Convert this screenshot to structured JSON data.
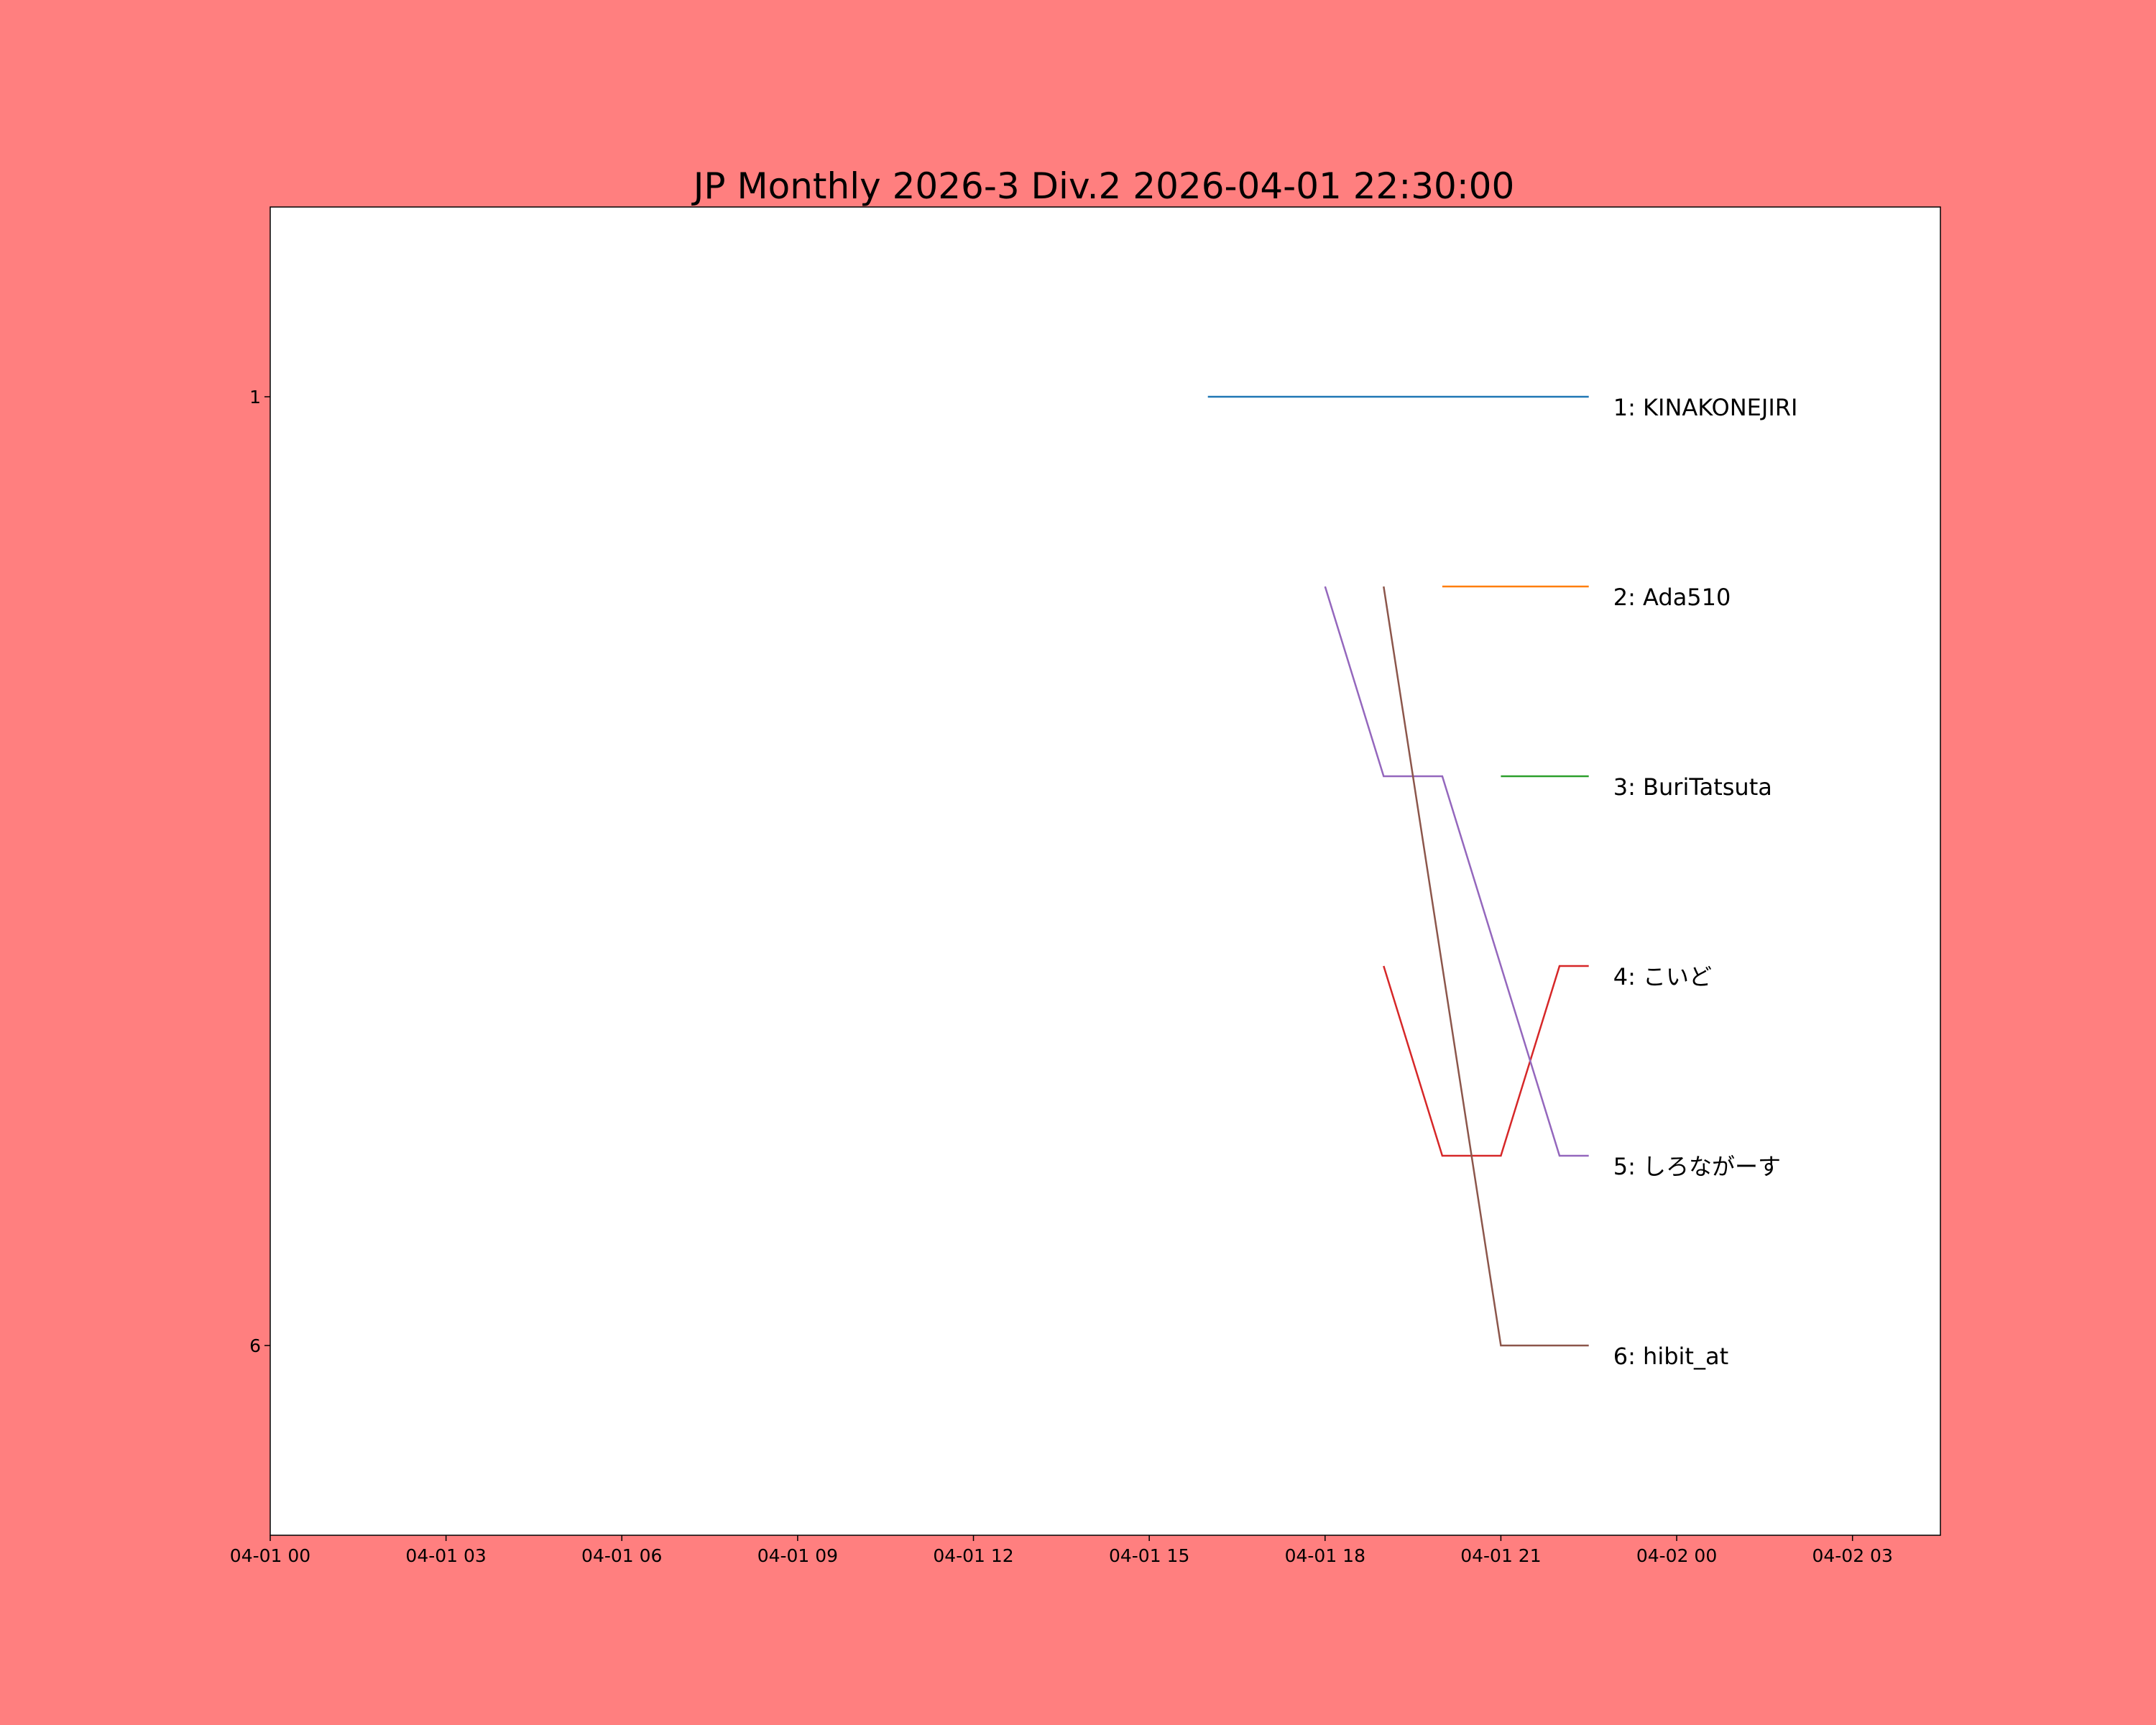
{
  "chart_data": {
    "type": "line",
    "title": "JP Monthly 2026-3 Div.2 2026-04-01 22:30:00",
    "xlabel": "",
    "ylabel": "",
    "xlim": [
      "2026-04-01 00:00",
      "2026-04-02 04:30"
    ],
    "ylim": [
      7,
      0
    ],
    "y_inverted": true,
    "grid": false,
    "background": "#ff7f7f",
    "plot_background": "#ffffff",
    "x_tick_labels": [
      {
        "x": "2026-04-01 00:00",
        "label": "04-01 00"
      },
      {
        "x": "2026-04-01 03:00",
        "label": "04-01 03"
      },
      {
        "x": "2026-04-01 06:00",
        "label": "04-01 06"
      },
      {
        "x": "2026-04-01 09:00",
        "label": "04-01 09"
      },
      {
        "x": "2026-04-01 12:00",
        "label": "04-01 12"
      },
      {
        "x": "2026-04-01 15:00",
        "label": "04-01 15"
      },
      {
        "x": "2026-04-01 18:00",
        "label": "04-01 18"
      },
      {
        "x": "2026-04-01 21:00",
        "label": "04-01 21"
      },
      {
        "x": "2026-04-02 00:00",
        "label": "04-02 00"
      },
      {
        "x": "2026-04-02 03:00",
        "label": "04-02 03"
      }
    ],
    "y_tick_labels": [
      {
        "y": 1,
        "label": "1"
      },
      {
        "y": 6,
        "label": "6"
      }
    ],
    "series": [
      {
        "label": "1: KINAKONEJIRI",
        "color": "#1f77b4",
        "points": [
          [
            "2026-04-01 16:00",
            1
          ],
          [
            "2026-04-01 22:30",
            1
          ]
        ]
      },
      {
        "label": "2: Ada510",
        "color": "#ff7f0e",
        "points": [
          [
            "2026-04-01 20:00",
            2
          ],
          [
            "2026-04-01 22:30",
            2
          ]
        ]
      },
      {
        "label": "3: BuriTatsuta",
        "color": "#2ca02c",
        "points": [
          [
            "2026-04-01 21:00",
            3
          ],
          [
            "2026-04-01 22:30",
            3
          ]
        ]
      },
      {
        "label": "4: こいど",
        "color": "#d62728",
        "points": [
          [
            "2026-04-01 19:00",
            4
          ],
          [
            "2026-04-01 20:00",
            5
          ],
          [
            "2026-04-01 21:00",
            5
          ],
          [
            "2026-04-01 22:00",
            4
          ],
          [
            "2026-04-01 22:30",
            4
          ]
        ]
      },
      {
        "label": "5: しろながーす",
        "color": "#9467bd",
        "points": [
          [
            "2026-04-01 18:00",
            2
          ],
          [
            "2026-04-01 19:00",
            3
          ],
          [
            "2026-04-01 20:00",
            3
          ],
          [
            "2026-04-01 22:00",
            5
          ],
          [
            "2026-04-01 22:30",
            5
          ]
        ]
      },
      {
        "label": "6: hibit_at",
        "color": "#8c564b",
        "points": [
          [
            "2026-04-01 19:00",
            2
          ],
          [
            "2026-04-01 21:00",
            6
          ],
          [
            "2026-04-01 22:30",
            6
          ]
        ]
      }
    ]
  }
}
